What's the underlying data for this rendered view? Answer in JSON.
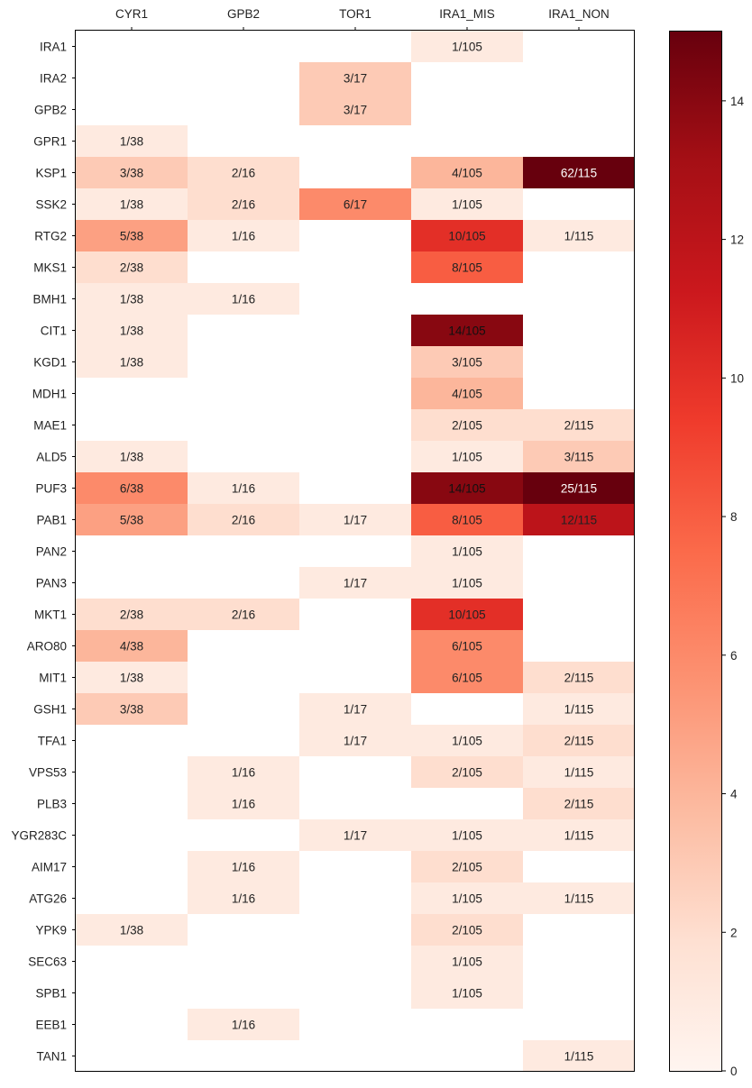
{
  "chart_data": {
    "type": "heatmap",
    "title": "",
    "xlabel": "",
    "ylabel": "",
    "columns": [
      "CYR1",
      "GPB2",
      "TOR1",
      "IRA1_MIS",
      "IRA1_NON"
    ],
    "rows": [
      "IRA1",
      "IRA2",
      "GPB2",
      "GPR1",
      "KSP1",
      "SSK2",
      "RTG2",
      "MKS1",
      "BMH1",
      "CIT1",
      "KGD1",
      "MDH1",
      "MAE1",
      "ALD5",
      "PUF3",
      "PAB1",
      "PAN2",
      "PAN3",
      "MKT1",
      "ARO80",
      "MIT1",
      "GSH1",
      "TFA1",
      "VPS53",
      "PLB3",
      "YGR283C",
      "AIM17",
      "ATG26",
      "YPK9",
      "SEC63",
      "SPB1",
      "EEB1",
      "TAN1"
    ],
    "cells": [
      {
        "row": "IRA1",
        "col": "IRA1_MIS",
        "label": "1/105",
        "value": 1
      },
      {
        "row": "IRA2",
        "col": "TOR1",
        "label": "3/17",
        "value": 3
      },
      {
        "row": "GPB2",
        "col": "TOR1",
        "label": "3/17",
        "value": 3
      },
      {
        "row": "GPR1",
        "col": "CYR1",
        "label": "1/38",
        "value": 1
      },
      {
        "row": "KSP1",
        "col": "CYR1",
        "label": "3/38",
        "value": 3
      },
      {
        "row": "KSP1",
        "col": "GPB2",
        "label": "2/16",
        "value": 2
      },
      {
        "row": "KSP1",
        "col": "IRA1_MIS",
        "label": "4/105",
        "value": 4
      },
      {
        "row": "KSP1",
        "col": "IRA1_NON",
        "label": "62/115",
        "value": 62
      },
      {
        "row": "SSK2",
        "col": "CYR1",
        "label": "1/38",
        "value": 1
      },
      {
        "row": "SSK2",
        "col": "GPB2",
        "label": "2/16",
        "value": 2
      },
      {
        "row": "SSK2",
        "col": "TOR1",
        "label": "6/17",
        "value": 6
      },
      {
        "row": "SSK2",
        "col": "IRA1_MIS",
        "label": "1/105",
        "value": 1
      },
      {
        "row": "RTG2",
        "col": "CYR1",
        "label": "5/38",
        "value": 5
      },
      {
        "row": "RTG2",
        "col": "GPB2",
        "label": "1/16",
        "value": 1
      },
      {
        "row": "RTG2",
        "col": "IRA1_MIS",
        "label": "10/105",
        "value": 10
      },
      {
        "row": "RTG2",
        "col": "IRA1_NON",
        "label": "1/115",
        "value": 1
      },
      {
        "row": "MKS1",
        "col": "CYR1",
        "label": "2/38",
        "value": 2
      },
      {
        "row": "MKS1",
        "col": "IRA1_MIS",
        "label": "8/105",
        "value": 8
      },
      {
        "row": "BMH1",
        "col": "CYR1",
        "label": "1/38",
        "value": 1
      },
      {
        "row": "BMH1",
        "col": "GPB2",
        "label": "1/16",
        "value": 1
      },
      {
        "row": "CIT1",
        "col": "CYR1",
        "label": "1/38",
        "value": 1
      },
      {
        "row": "CIT1",
        "col": "IRA1_MIS",
        "label": "14/105",
        "value": 14
      },
      {
        "row": "KGD1",
        "col": "CYR1",
        "label": "1/38",
        "value": 1
      },
      {
        "row": "KGD1",
        "col": "IRA1_MIS",
        "label": "3/105",
        "value": 3
      },
      {
        "row": "MDH1",
        "col": "IRA1_MIS",
        "label": "4/105",
        "value": 4
      },
      {
        "row": "MAE1",
        "col": "IRA1_MIS",
        "label": "2/105",
        "value": 2
      },
      {
        "row": "MAE1",
        "col": "IRA1_NON",
        "label": "2/115",
        "value": 2
      },
      {
        "row": "ALD5",
        "col": "CYR1",
        "label": "1/38",
        "value": 1
      },
      {
        "row": "ALD5",
        "col": "IRA1_MIS",
        "label": "1/105",
        "value": 1
      },
      {
        "row": "ALD5",
        "col": "IRA1_NON",
        "label": "3/115",
        "value": 3
      },
      {
        "row": "PUF3",
        "col": "CYR1",
        "label": "6/38",
        "value": 6
      },
      {
        "row": "PUF3",
        "col": "GPB2",
        "label": "1/16",
        "value": 1
      },
      {
        "row": "PUF3",
        "col": "IRA1_MIS",
        "label": "14/105",
        "value": 14
      },
      {
        "row": "PUF3",
        "col": "IRA1_NON",
        "label": "25/115",
        "value": 25
      },
      {
        "row": "PAB1",
        "col": "CYR1",
        "label": "5/38",
        "value": 5
      },
      {
        "row": "PAB1",
        "col": "GPB2",
        "label": "2/16",
        "value": 2
      },
      {
        "row": "PAB1",
        "col": "TOR1",
        "label": "1/17",
        "value": 1
      },
      {
        "row": "PAB1",
        "col": "IRA1_MIS",
        "label": "8/105",
        "value": 8
      },
      {
        "row": "PAB1",
        "col": "IRA1_NON",
        "label": "12/115",
        "value": 12
      },
      {
        "row": "PAN2",
        "col": "IRA1_MIS",
        "label": "1/105",
        "value": 1
      },
      {
        "row": "PAN3",
        "col": "TOR1",
        "label": "1/17",
        "value": 1
      },
      {
        "row": "PAN3",
        "col": "IRA1_MIS",
        "label": "1/105",
        "value": 1
      },
      {
        "row": "MKT1",
        "col": "CYR1",
        "label": "2/38",
        "value": 2
      },
      {
        "row": "MKT1",
        "col": "GPB2",
        "label": "2/16",
        "value": 2
      },
      {
        "row": "MKT1",
        "col": "IRA1_MIS",
        "label": "10/105",
        "value": 10
      },
      {
        "row": "ARO80",
        "col": "CYR1",
        "label": "4/38",
        "value": 4
      },
      {
        "row": "ARO80",
        "col": "IRA1_MIS",
        "label": "6/105",
        "value": 6
      },
      {
        "row": "MIT1",
        "col": "CYR1",
        "label": "1/38",
        "value": 1
      },
      {
        "row": "MIT1",
        "col": "IRA1_MIS",
        "label": "6/105",
        "value": 6
      },
      {
        "row": "MIT1",
        "col": "IRA1_NON",
        "label": "2/115",
        "value": 2
      },
      {
        "row": "GSH1",
        "col": "CYR1",
        "label": "3/38",
        "value": 3
      },
      {
        "row": "GSH1",
        "col": "TOR1",
        "label": "1/17",
        "value": 1
      },
      {
        "row": "GSH1",
        "col": "IRA1_NON",
        "label": "1/115",
        "value": 1
      },
      {
        "row": "TFA1",
        "col": "TOR1",
        "label": "1/17",
        "value": 1
      },
      {
        "row": "TFA1",
        "col": "IRA1_MIS",
        "label": "1/105",
        "value": 1
      },
      {
        "row": "TFA1",
        "col": "IRA1_NON",
        "label": "2/115",
        "value": 2
      },
      {
        "row": "VPS53",
        "col": "GPB2",
        "label": "1/16",
        "value": 1
      },
      {
        "row": "VPS53",
        "col": "IRA1_MIS",
        "label": "2/105",
        "value": 2
      },
      {
        "row": "VPS53",
        "col": "IRA1_NON",
        "label": "1/115",
        "value": 1
      },
      {
        "row": "PLB3",
        "col": "GPB2",
        "label": "1/16",
        "value": 1
      },
      {
        "row": "PLB3",
        "col": "IRA1_NON",
        "label": "2/115",
        "value": 2
      },
      {
        "row": "YGR283C",
        "col": "TOR1",
        "label": "1/17",
        "value": 1
      },
      {
        "row": "YGR283C",
        "col": "IRA1_MIS",
        "label": "1/105",
        "value": 1
      },
      {
        "row": "YGR283C",
        "col": "IRA1_NON",
        "label": "1/115",
        "value": 1
      },
      {
        "row": "AIM17",
        "col": "GPB2",
        "label": "1/16",
        "value": 1
      },
      {
        "row": "AIM17",
        "col": "IRA1_MIS",
        "label": "2/105",
        "value": 2
      },
      {
        "row": "ATG26",
        "col": "GPB2",
        "label": "1/16",
        "value": 1
      },
      {
        "row": "ATG26",
        "col": "IRA1_MIS",
        "label": "1/105",
        "value": 1
      },
      {
        "row": "ATG26",
        "col": "IRA1_NON",
        "label": "1/115",
        "value": 1
      },
      {
        "row": "YPK9",
        "col": "CYR1",
        "label": "1/38",
        "value": 1
      },
      {
        "row": "YPK9",
        "col": "IRA1_MIS",
        "label": "2/105",
        "value": 2
      },
      {
        "row": "SEC63",
        "col": "IRA1_MIS",
        "label": "1/105",
        "value": 1
      },
      {
        "row": "SPB1",
        "col": "IRA1_MIS",
        "label": "1/105",
        "value": 1
      },
      {
        "row": "EEB1",
        "col": "GPB2",
        "label": "1/16",
        "value": 1
      },
      {
        "row": "TAN1",
        "col": "IRA1_NON",
        "label": "1/115",
        "value": 1
      }
    ],
    "colorscale": "Reds",
    "colorbar": {
      "range": [
        0,
        15
      ],
      "ticks": [
        0,
        2,
        4,
        6,
        8,
        10,
        12,
        14
      ]
    }
  }
}
